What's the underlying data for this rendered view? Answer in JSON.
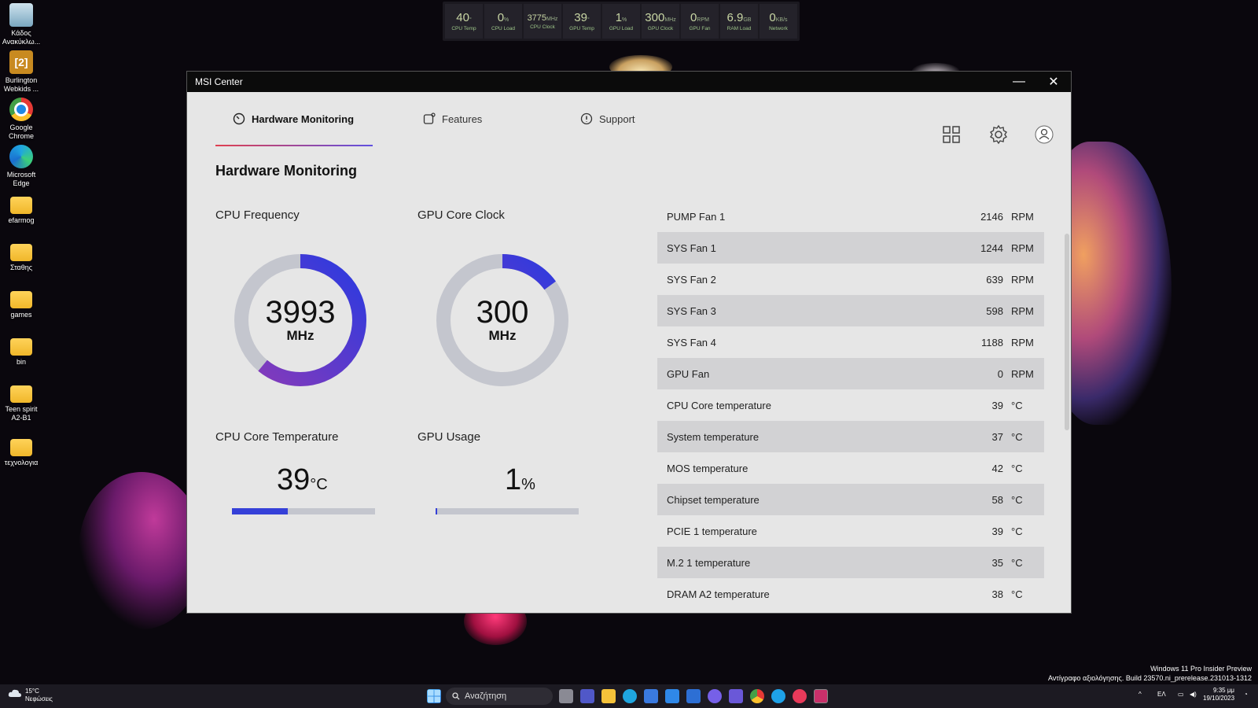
{
  "desktop": {
    "icons": [
      {
        "label": "Κάδος Ανακύκλω..."
      },
      {
        "label": "Burlington Webkids ..."
      },
      {
        "label": "Google Chrome"
      },
      {
        "label": "Microsoft Edge"
      },
      {
        "label": "efarmog"
      },
      {
        "label": "Σταθης"
      },
      {
        "label": "games"
      },
      {
        "label": "bin"
      },
      {
        "label": "Teen spirit A2-B1"
      },
      {
        "label": "τεχνολογια"
      }
    ],
    "burlington_glyph": "[2]"
  },
  "osd": [
    {
      "value": "40",
      "unit": "°",
      "label": "CPU Temp"
    },
    {
      "value": "0",
      "unit": "%",
      "label": "CPU Load"
    },
    {
      "value": "3775",
      "unit": "MHz",
      "label": "CPU Clock"
    },
    {
      "value": "39",
      "unit": "°",
      "label": "GPU Temp"
    },
    {
      "value": "1",
      "unit": "%",
      "label": "GPU Load"
    },
    {
      "value": "300",
      "unit": "MHz",
      "label": "GPU Clock"
    },
    {
      "value": "0",
      "unit": "RPM",
      "label": "GPU Fan"
    },
    {
      "value": "6.9",
      "unit": "GB",
      "label": "RAM Load"
    },
    {
      "value": "0",
      "unit": "KB/s",
      "label": "Network"
    }
  ],
  "window": {
    "title": "MSI Center",
    "minimize": "—",
    "close": "✕",
    "tabs": [
      {
        "label": "Hardware Monitoring",
        "icon": "gauge-icon"
      },
      {
        "label": "Features",
        "icon": "features-icon"
      },
      {
        "label": "Support",
        "icon": "support-icon"
      }
    ],
    "page_title": "Hardware Monitoring",
    "cpu_frequency": {
      "label": "CPU Frequency",
      "value": "3993",
      "unit": "MHz",
      "fraction": 0.61
    },
    "gpu_clock": {
      "label": "GPU Core Clock",
      "value": "300",
      "unit": "MHz",
      "fraction": 0.15
    },
    "cpu_temp": {
      "label": "CPU Core Temperature",
      "value": "39",
      "unit": "°C",
      "fraction": 0.39
    },
    "gpu_usage": {
      "label": "GPU Usage",
      "value": "1",
      "unit": "%",
      "fraction": 0.01
    },
    "sensors": [
      {
        "name": "PUMP Fan 1",
        "value": "2146",
        "unit": "RPM"
      },
      {
        "name": "SYS Fan 1",
        "value": "1244",
        "unit": "RPM"
      },
      {
        "name": "SYS Fan 2",
        "value": "639",
        "unit": "RPM"
      },
      {
        "name": "SYS Fan 3",
        "value": "598",
        "unit": "RPM"
      },
      {
        "name": "SYS Fan 4",
        "value": "1188",
        "unit": "RPM"
      },
      {
        "name": "GPU Fan",
        "value": "0",
        "unit": "RPM"
      },
      {
        "name": "CPU Core temperature",
        "value": "39",
        "unit": "°C"
      },
      {
        "name": "System temperature",
        "value": "37",
        "unit": "°C"
      },
      {
        "name": "MOS temperature",
        "value": "42",
        "unit": "°C"
      },
      {
        "name": "Chipset temperature",
        "value": "58",
        "unit": "°C"
      },
      {
        "name": "PCIE 1 temperature",
        "value": "39",
        "unit": "°C"
      },
      {
        "name": "M.2 1 temperature",
        "value": "35",
        "unit": "°C"
      },
      {
        "name": "DRAM A2 temperature",
        "value": "38",
        "unit": "°C"
      }
    ],
    "colors": {
      "accent": "#3540d8",
      "gauge_track": "#c4c6ce",
      "gradient_start": "#8a3ab8"
    }
  },
  "taskbar": {
    "weather_temp": "15°C",
    "weather_desc": "Νεφώσεις",
    "search_placeholder": "Αναζήτηση",
    "language": "ΕΛ",
    "time": "9:35 μμ",
    "date": "19/10/2023"
  },
  "watermark": {
    "line1": "Windows 11 Pro Insider Preview",
    "line2": "Αντίγραφο αξιολόγησης. Build 23570.ni_prerelease.231013-1312"
  }
}
